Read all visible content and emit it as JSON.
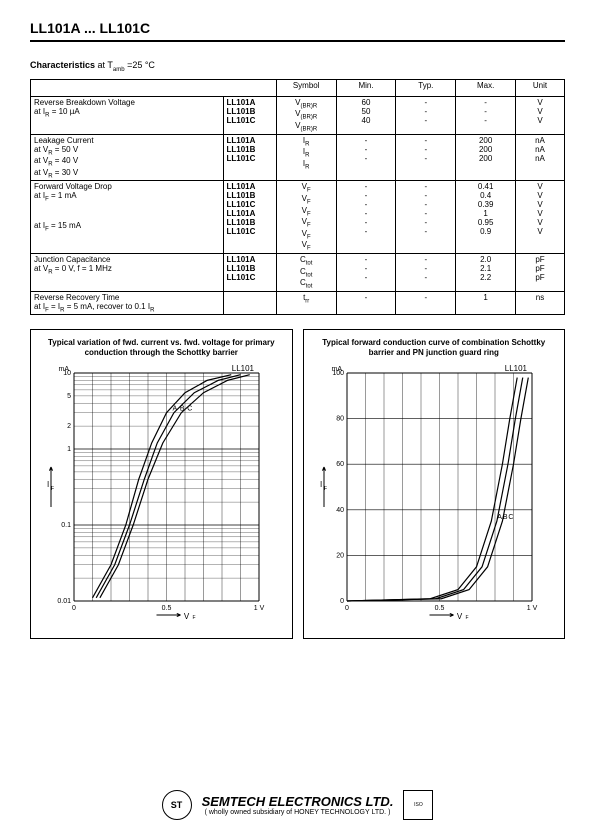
{
  "header": {
    "title": "LL101A ... LL101C"
  },
  "characteristics": {
    "title_bold": "Characteristics",
    "title_rest": " at T",
    "title_sub": "amb",
    "title_after": " =25 °C",
    "headers": [
      "Symbol",
      "Min.",
      "Typ.",
      "Max.",
      "Unit"
    ]
  },
  "sections": [
    {
      "title": "Reverse Breakdown Voltage",
      "cond": "at I",
      "cond_sub": "R",
      "cond_after": " = 10 µA",
      "rows": [
        {
          "dev": "LL101A",
          "sym": "V",
          "sym_sub": "(BR)R",
          "min": "60",
          "typ": "-",
          "max": "-",
          "unit": "V"
        },
        {
          "dev": "LL101B",
          "sym": "V",
          "sym_sub": "(BR)R",
          "min": "50",
          "typ": "-",
          "max": "-",
          "unit": "V"
        },
        {
          "dev": "LL101C",
          "sym": "V",
          "sym_sub": "(BR)R",
          "min": "40",
          "typ": "-",
          "max": "-",
          "unit": "V"
        }
      ]
    },
    {
      "title": "Leakage Current",
      "lines": [
        {
          "cond": "at V",
          "cond_sub": "R",
          "cond_after": " = 50 V",
          "dev": "LL101A",
          "sym": "I",
          "sym_sub": "R",
          "min": "-",
          "typ": "-",
          "max": "200",
          "unit": "nA"
        },
        {
          "cond": "at V",
          "cond_sub": "R",
          "cond_after": " = 40 V",
          "dev": "LL101B",
          "sym": "I",
          "sym_sub": "R",
          "min": "-",
          "typ": "-",
          "max": "200",
          "unit": "nA"
        },
        {
          "cond": "at V",
          "cond_sub": "R",
          "cond_after": " = 30 V",
          "dev": "LL101C",
          "sym": "I",
          "sym_sub": "R",
          "min": "-",
          "typ": "-",
          "max": "200",
          "unit": "nA"
        }
      ]
    },
    {
      "title": "Forward Voltage Drop",
      "groups": [
        {
          "cond": "at I",
          "cond_sub": "F",
          "cond_after": " = 1 mA",
          "rows": [
            {
              "dev": "LL101A",
              "sym": "V",
              "sym_sub": "F",
              "min": "-",
              "typ": "-",
              "max": "0.41",
              "unit": "V"
            },
            {
              "dev": "LL101B",
              "sym": "V",
              "sym_sub": "F",
              "min": "-",
              "typ": "-",
              "max": "0.4",
              "unit": "V"
            },
            {
              "dev": "LL101C",
              "sym": "V",
              "sym_sub": "F",
              "min": "-",
              "typ": "-",
              "max": "0.39",
              "unit": "V"
            }
          ]
        },
        {
          "cond": "at I",
          "cond_sub": "F",
          "cond_after": " = 15 mA",
          "rows": [
            {
              "dev": "LL101A",
              "sym": "V",
              "sym_sub": "F",
              "min": "-",
              "typ": "-",
              "max": "1",
              "unit": "V"
            },
            {
              "dev": "LL101B",
              "sym": "V",
              "sym_sub": "F",
              "min": "-",
              "typ": "-",
              "max": "0.95",
              "unit": "V"
            },
            {
              "dev": "LL101C",
              "sym": "V",
              "sym_sub": "F",
              "min": "-",
              "typ": "-",
              "max": "0.9",
              "unit": "V"
            }
          ]
        }
      ]
    },
    {
      "title": "Junction Capacitance",
      "cond": "at V",
      "cond_sub": "R",
      "cond_after": " = 0 V, f = 1 MHz",
      "rows": [
        {
          "dev": "LL101A",
          "sym": "C",
          "sym_sub": "tot",
          "min": "-",
          "typ": "-",
          "max": "2.0",
          "unit": "pF"
        },
        {
          "dev": "LL101B",
          "sym": "C",
          "sym_sub": "tot",
          "min": "-",
          "typ": "-",
          "max": "2.1",
          "unit": "pF"
        },
        {
          "dev": "LL101C",
          "sym": "C",
          "sym_sub": "tot",
          "min": "-",
          "typ": "-",
          "max": "2.2",
          "unit": "pF"
        }
      ]
    },
    {
      "title": "Reverse Recovery Time",
      "cond_full": "at I_F = I_R = 5 mA, recover to 0.1 I_R",
      "single": {
        "sym": "t",
        "sym_sub": "rr",
        "min": "-",
        "typ": "-",
        "max": "1",
        "unit": "ns"
      }
    }
  ],
  "chart1": {
    "title": "Typical variation of fwd. current vs. fwd. voltage for primary conduction through the Schottky barrier",
    "device_label": "LL101",
    "y_label": "I_F",
    "y_unit": "mA",
    "x_label": "V_F",
    "x_unit": "1 V",
    "type": "semilog-y",
    "ylim": [
      0.01,
      10
    ],
    "xlim": [
      0,
      1
    ],
    "y_ticks": [
      "0.01",
      "?",
      "0.1",
      "?",
      "1",
      "2",
      "5",
      "10"
    ],
    "x_ticks": [
      "0",
      "0.5",
      "1 V"
    ],
    "series_labels": [
      "A",
      "B",
      "C"
    ],
    "grid_color": "#000000",
    "background_color": "#ffffff",
    "line_color": "#000000",
    "curves": {
      "A": [
        [
          0.1,
          0.011
        ],
        [
          0.2,
          0.03
        ],
        [
          0.28,
          0.1
        ],
        [
          0.35,
          0.4
        ],
        [
          0.42,
          1.2
        ],
        [
          0.5,
          3.0
        ],
        [
          0.6,
          5.5
        ],
        [
          0.72,
          8.0
        ],
        [
          0.85,
          9.5
        ]
      ],
      "B": [
        [
          0.12,
          0.011
        ],
        [
          0.22,
          0.03
        ],
        [
          0.3,
          0.1
        ],
        [
          0.38,
          0.4
        ],
        [
          0.45,
          1.2
        ],
        [
          0.54,
          3.0
        ],
        [
          0.65,
          5.5
        ],
        [
          0.78,
          8.0
        ],
        [
          0.9,
          9.5
        ]
      ],
      "C": [
        [
          0.14,
          0.011
        ],
        [
          0.24,
          0.03
        ],
        [
          0.32,
          0.1
        ],
        [
          0.4,
          0.4
        ],
        [
          0.48,
          1.2
        ],
        [
          0.58,
          3.0
        ],
        [
          0.7,
          5.5
        ],
        [
          0.83,
          8.0
        ],
        [
          0.95,
          9.5
        ]
      ]
    }
  },
  "chart2": {
    "title": "Typical forward conduction curve of combination Schottky barrier and PN junction guard ring",
    "device_label": "LL101",
    "y_label": "I_F",
    "y_unit": "mA",
    "x_label": "V_F",
    "x_unit": "1 V",
    "type": "linear",
    "ylim": [
      0,
      100
    ],
    "xlim": [
      0,
      1
    ],
    "y_ticks": [
      "0",
      "20",
      "40",
      "60",
      "80",
      "100"
    ],
    "x_ticks": [
      "0",
      "0.5",
      "1 V"
    ],
    "series_labels": [
      "A",
      "B",
      "C"
    ],
    "grid_color": "#000000",
    "background_color": "#ffffff",
    "line_color": "#000000",
    "curves": {
      "A": [
        [
          0.0,
          0
        ],
        [
          0.45,
          1
        ],
        [
          0.6,
          5
        ],
        [
          0.7,
          15
        ],
        [
          0.78,
          35
        ],
        [
          0.84,
          60
        ],
        [
          0.88,
          80
        ],
        [
          0.92,
          98
        ]
      ],
      "B": [
        [
          0.0,
          0
        ],
        [
          0.48,
          1
        ],
        [
          0.63,
          5
        ],
        [
          0.73,
          15
        ],
        [
          0.81,
          35
        ],
        [
          0.87,
          60
        ],
        [
          0.91,
          80
        ],
        [
          0.95,
          98
        ]
      ],
      "C": [
        [
          0.0,
          0
        ],
        [
          0.51,
          1
        ],
        [
          0.66,
          5
        ],
        [
          0.76,
          15
        ],
        [
          0.84,
          35
        ],
        [
          0.9,
          60
        ],
        [
          0.94,
          80
        ],
        [
          0.98,
          98
        ]
      ]
    }
  },
  "footer": {
    "company": "SEMTECH ELECTRONICS LTD.",
    "sub": "( wholly owned subsidiary of HONEY TECHNOLOGY LTD. )",
    "logo_text": "ST",
    "cert_text": "ISO"
  }
}
